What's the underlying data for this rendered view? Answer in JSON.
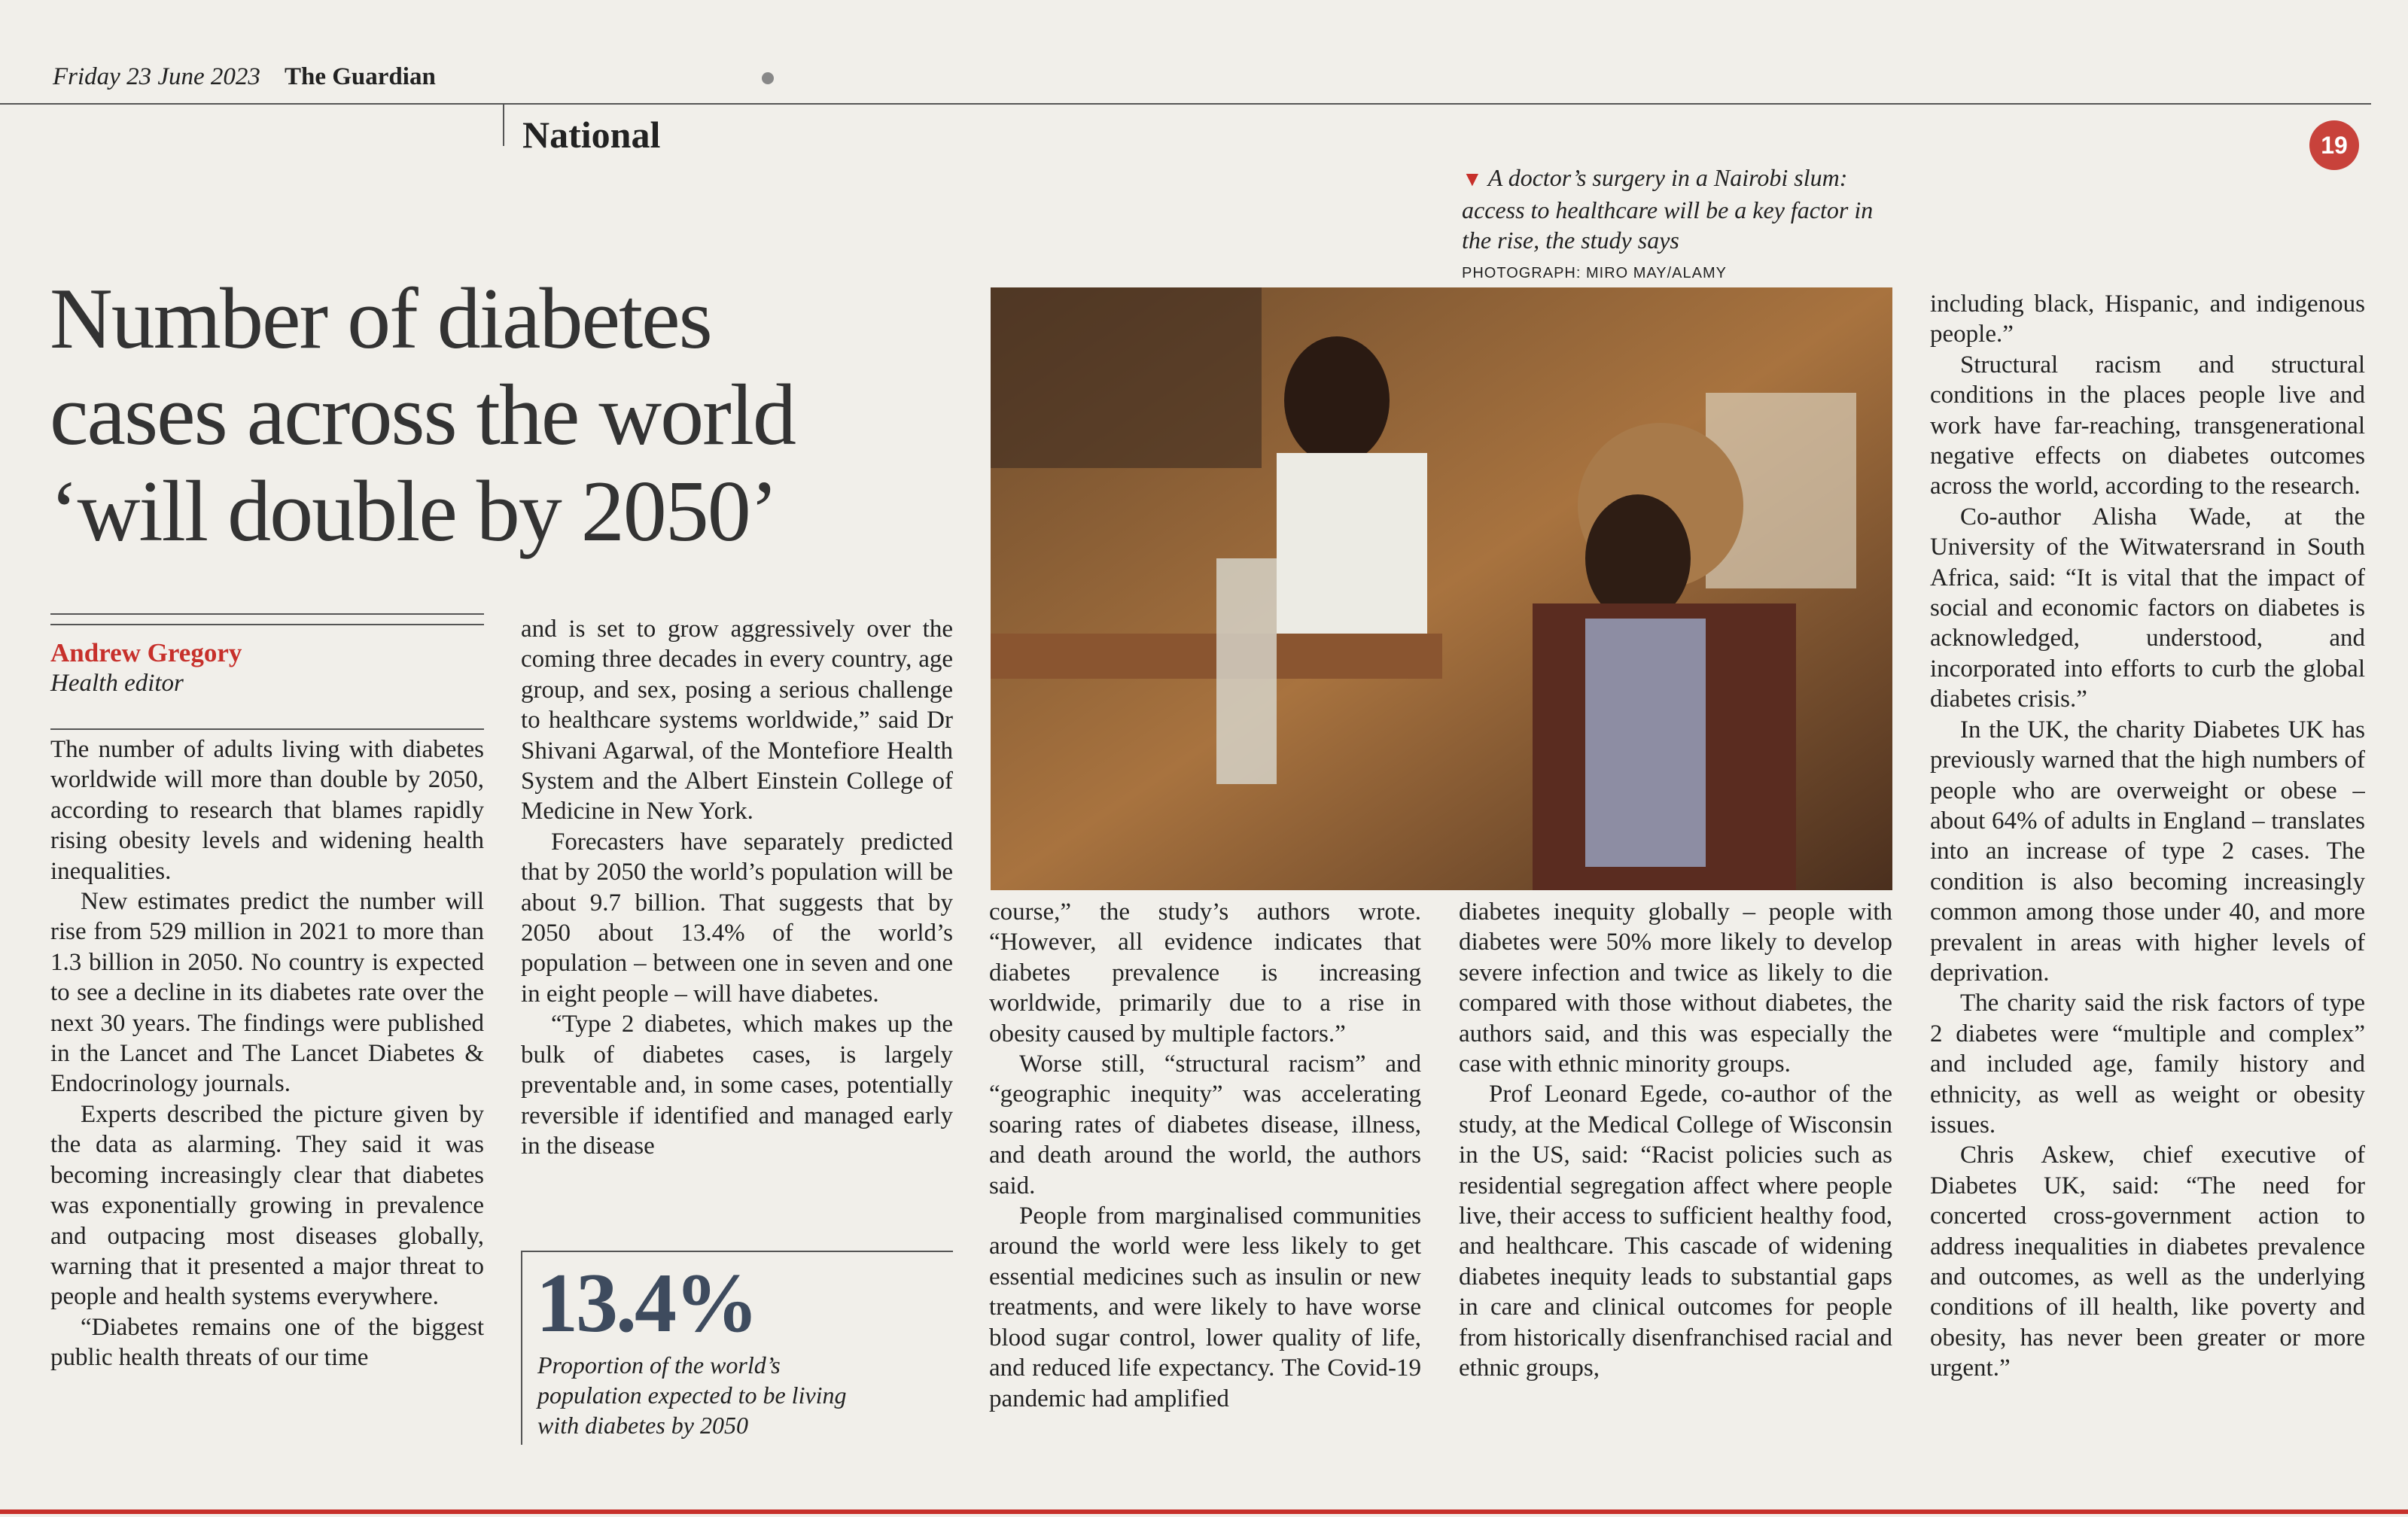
{
  "header": {
    "date": "Friday 23 June 2023",
    "paper": "The Guardian",
    "section": "National",
    "page_number": "19"
  },
  "article": {
    "headline": {
      "lines": [
        "Number of diabetes",
        "cases across the world",
        "‘will double by 2050’"
      ]
    },
    "byline": {
      "name": "Andrew Gregory",
      "role": "Health editor"
    },
    "photo": {
      "caption": "A doctor’s surgery in a Nairobi slum: access to healthcare will be a key factor in the rise, the study says",
      "credit": "PHOTOGRAPH: MIRO MAY/ALAMY"
    },
    "pullquote": {
      "figure": "13.4%",
      "text": "Proportion of the world’s population expected to be living with diabetes by 2050"
    },
    "columns": [
      {
        "paragraphs": [
          "The number of adults living with diabetes worldwide will more than double by 2050, according to research that blames rapidly rising obesity levels and widening health inequalities.",
          "New estimates predict the number will rise from 529 million in 2021 to more than 1.3 billion in 2050. No country is expected to see a decline in its diabetes rate over the next 30 years. The findings were published in the Lancet and The Lancet Diabetes & Endocrinology journals.",
          "Experts described the picture given by the data as alarming. They said it was becoming increasingly clear that diabetes was exponentially growing in prevalence and outpacing most diseases globally, warning that it presented a major threat to people and health systems everywhere.",
          "“Diabetes remains one of the biggest public health threats of our time"
        ]
      },
      {
        "paragraphs": [
          "and is set to grow aggressively over the coming three decades in every country, age group, and sex, posing a serious challenge to healthcare systems worldwide,” said Dr Shivani Agarwal, of the Montefiore Health System and the Albert Einstein College of Medicine in New York.",
          "Forecasters have separately predicted that by 2050 the world’s population will be about 9.7 billion. That suggests that by 2050 about 13.4% of the world’s population – between one in seven and one in eight people – will have diabetes.",
          "“Type 2 diabetes, which makes up the bulk of diabetes cases, is largely preventable and, in some cases, potentially reversible if identified and managed early in the disease"
        ]
      },
      {
        "paragraphs": [
          "course,” the study’s authors wrote. “However, all evidence indicates that diabetes prevalence is increasing worldwide, primarily due to a rise in obesity caused by multiple factors.”",
          "Worse still, “structural racism” and “geographic inequity” was accelerating soaring rates of diabetes disease, illness, and death around the world, the authors said.",
          "People from marginalised communities around the world were less likely to get essential medicines such as insulin or new treatments, and were likely to have worse blood sugar control, lower quality of life, and reduced life expectancy. The Covid-19 pandemic had amplified"
        ]
      },
      {
        "paragraphs": [
          "diabetes inequity globally – people with diabetes were 50% more likely to develop severe infection and twice as likely to die compared with those without diabetes, the authors said, and this was especially the case with ethnic minority groups.",
          "Prof Leonard Egede, co-author of the study, at the Medical College of Wisconsin in the US, said: “Racist policies such as residential segregation affect where people live, their access to sufficient healthy food, and healthcare. This cascade of widening diabetes inequity leads to substantial gaps in care and clinical outcomes for people from historically disenfranchised racial and ethnic groups,"
        ]
      },
      {
        "paragraphs": [
          "including black, Hispanic, and indigenous people.”",
          "Structural racism and structural conditions in the places people live and work have far-reaching, transgenerational negative effects on diabetes outcomes across the world, according to the research.",
          "Co-author Alisha Wade, at the University of the Witwatersrand in South Africa, said: “It is vital that the impact of social and economic factors on diabetes is acknowledged, understood, and incorporated into efforts to curb the global diabetes crisis.”",
          "In the UK, the charity Diabetes UK has previously warned that the high numbers of people who are overweight or obese – about 64% of adults in England – translates into an increase of type 2 cases. The condition is also becoming increasingly common among those under 40, and more prevalent in areas with higher levels of deprivation.",
          "The charity said the risk factors of type 2 diabetes were “multiple and complex” and included age, family history and ethnicity, as well as weight or obesity issues.",
          "Chris Askew, chief executive of Diabetes UK, said: “The need for concerted cross-government action to address inequalities in diabetes prevalence and outcomes, as well as the underlying conditions of ill health, like poverty and obesity, has never been greater or more urgent.”"
        ]
      }
    ]
  }
}
